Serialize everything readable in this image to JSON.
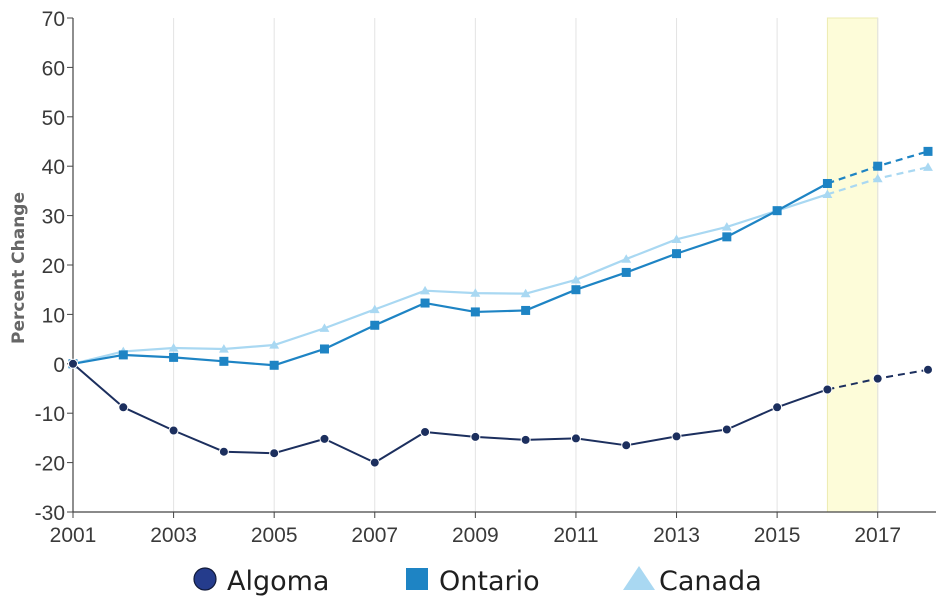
{
  "chart_data": {
    "type": "line",
    "title": "",
    "xlabel": "",
    "ylabel": "Percent Change",
    "xlim": [
      2001,
      2018
    ],
    "ylim": [
      -30,
      70
    ],
    "x_ticks": [
      2001,
      2003,
      2005,
      2007,
      2009,
      2011,
      2013,
      2015,
      2017
    ],
    "x_tick_labels": [
      "2001",
      "2003",
      "2005",
      "2007",
      "2009",
      "2011",
      "2013",
      "2015",
      "2017"
    ],
    "y_ticks": [
      -30,
      -20,
      -10,
      0,
      10,
      20,
      30,
      40,
      50,
      60,
      70
    ],
    "y_tick_labels": [
      "-30",
      "-20",
      "-10",
      "0",
      "10",
      "20",
      "30",
      "40",
      "50",
      "60",
      "70"
    ],
    "grid": "vertical",
    "highlight_range": [
      2016,
      2017
    ],
    "projection_from": 2016,
    "legend_position": "bottom",
    "x": [
      2001,
      2002,
      2003,
      2004,
      2005,
      2006,
      2007,
      2008,
      2009,
      2010,
      2011,
      2012,
      2013,
      2014,
      2015,
      2016,
      2017,
      2018
    ],
    "series": [
      {
        "name": "Algoma",
        "marker": "circle",
        "color": "#1c2f5e",
        "legend_color": "#253c8c",
        "values": [
          0,
          -8.8,
          -13.5,
          -17.8,
          -18.1,
          -15.2,
          -20.0,
          -13.8,
          -14.8,
          -15.4,
          -15.1,
          -16.5,
          -14.7,
          -13.3,
          -8.8,
          -5.2,
          -3.0,
          -1.2
        ]
      },
      {
        "name": "Ontario",
        "marker": "square",
        "color": "#1e84c4",
        "legend_color": "#1e84c4",
        "values": [
          0,
          1.8,
          1.3,
          0.5,
          -0.3,
          3.0,
          7.8,
          12.3,
          10.5,
          10.8,
          15.0,
          18.5,
          22.3,
          25.7,
          31.0,
          36.5,
          40.0,
          43.0
        ]
      },
      {
        "name": "Canada",
        "marker": "triangle",
        "color": "#a9d8f2",
        "legend_color": "#a9d8f2",
        "values": [
          0,
          2.5,
          3.2,
          3.0,
          3.8,
          7.2,
          11.0,
          14.8,
          14.3,
          14.2,
          17.0,
          21.2,
          25.2,
          27.7,
          31.0,
          34.3,
          37.5,
          39.8
        ]
      }
    ]
  }
}
